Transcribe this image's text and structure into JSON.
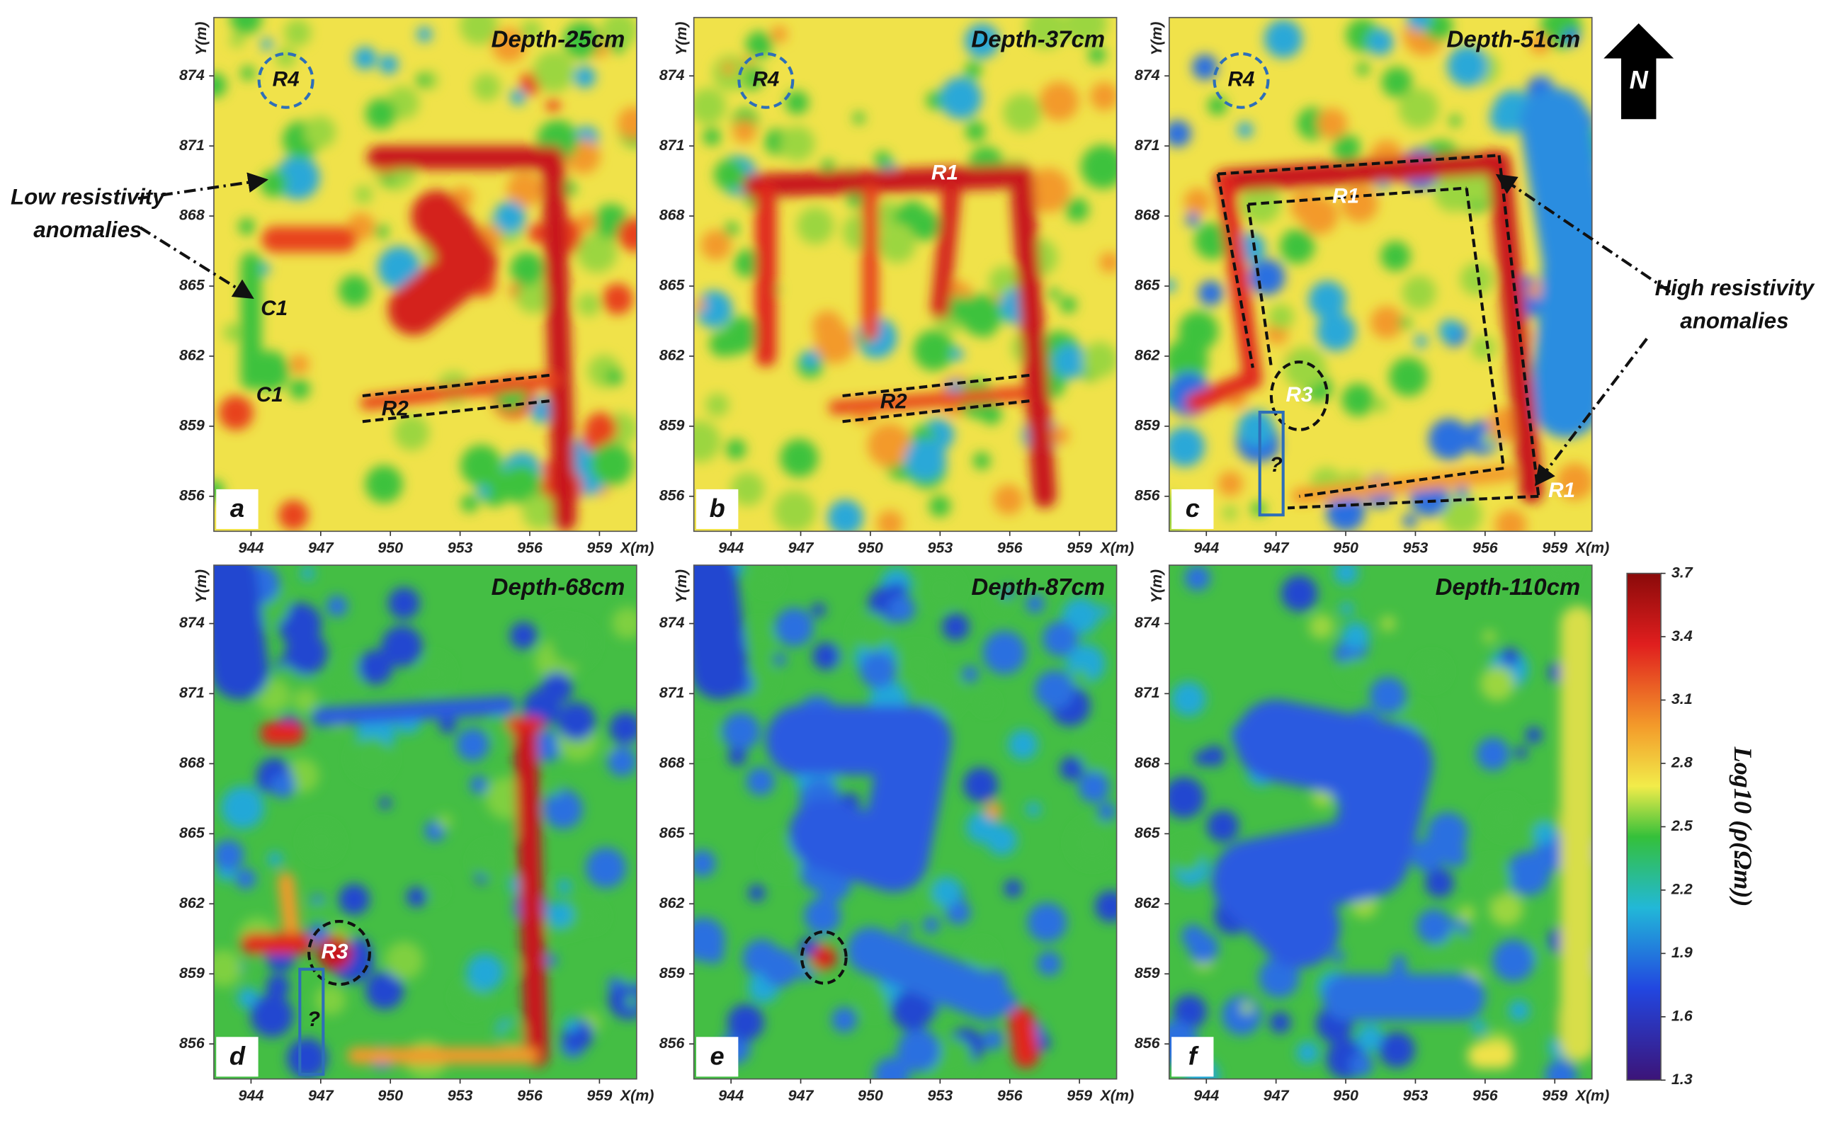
{
  "chart_data": [
    {
      "type": "heatmap",
      "title": "Depth-25cm",
      "panel": "a",
      "xlabel": "X(m)",
      "ylabel": "Y(m)",
      "xlim": [
        942.4,
        960.6
      ],
      "ylim": [
        854.5,
        876.5
      ],
      "xticks": [
        944,
        947,
        950,
        953,
        956,
        959
      ],
      "yticks": [
        856,
        859,
        862,
        865,
        868,
        871,
        874
      ],
      "labels": [
        "R4",
        "C1",
        "C1",
        "R2"
      ],
      "note": [
        "Low resistivity",
        "anomalies"
      ]
    },
    {
      "type": "heatmap",
      "title": "Depth-37cm",
      "panel": "b",
      "xlabel": "X(m)",
      "ylabel": "Y(m)",
      "xlim": [
        942.4,
        960.6
      ],
      "ylim": [
        854.5,
        876.5
      ],
      "xticks": [
        944,
        947,
        950,
        953,
        956,
        959
      ],
      "yticks": [
        856,
        859,
        862,
        865,
        868,
        871,
        874
      ],
      "labels": [
        "R4",
        "R1",
        "R2"
      ]
    },
    {
      "type": "heatmap",
      "title": "Depth-51cm",
      "panel": "c",
      "xlabel": "X(m)",
      "ylabel": "Y(m)",
      "xlim": [
        942.4,
        960.6
      ],
      "ylim": [
        854.5,
        876.5
      ],
      "xticks": [
        944,
        947,
        950,
        953,
        956,
        959
      ],
      "yticks": [
        856,
        859,
        862,
        865,
        868,
        871,
        874
      ],
      "labels": [
        "R4",
        "R1",
        "R3",
        "?",
        "R1"
      ],
      "note": [
        "High resistivity",
        "anomalies"
      ],
      "north": "N"
    },
    {
      "type": "heatmap",
      "title": "Depth-68cm",
      "panel": "d",
      "xlabel": "X(m)",
      "ylabel": "Y(m)",
      "xlim": [
        942.4,
        960.6
      ],
      "ylim": [
        854.5,
        876.5
      ],
      "xticks": [
        944,
        947,
        950,
        953,
        956,
        959
      ],
      "yticks": [
        856,
        859,
        862,
        865,
        868,
        871,
        874
      ],
      "labels": [
        "R3",
        "?"
      ]
    },
    {
      "type": "heatmap",
      "title": "Depth-87cm",
      "panel": "e",
      "xlabel": "X(m)",
      "ylabel": "Y(m)",
      "xlim": [
        942.4,
        960.6
      ],
      "ylim": [
        854.5,
        876.5
      ],
      "xticks": [
        944,
        947,
        950,
        953,
        956,
        959
      ],
      "yticks": [
        856,
        859,
        862,
        865,
        868,
        871,
        874
      ],
      "labels": []
    },
    {
      "type": "heatmap",
      "title": "Depth-110cm",
      "panel": "f",
      "xlabel": "X(m)",
      "ylabel": "Y(m)",
      "xlim": [
        942.4,
        960.6
      ],
      "ylim": [
        854.5,
        876.5
      ],
      "xticks": [
        944,
        947,
        950,
        953,
        956,
        959
      ],
      "yticks": [
        856,
        859,
        862,
        865,
        868,
        871,
        874
      ],
      "labels": [],
      "colorbar": {
        "label": "Log10 (ρ(Ωm))",
        "lim": [
          1.3,
          3.7
        ],
        "ticks": [
          1.3,
          1.6,
          1.9,
          2.2,
          2.5,
          2.8,
          3.1,
          3.4,
          3.7
        ]
      }
    }
  ]
}
